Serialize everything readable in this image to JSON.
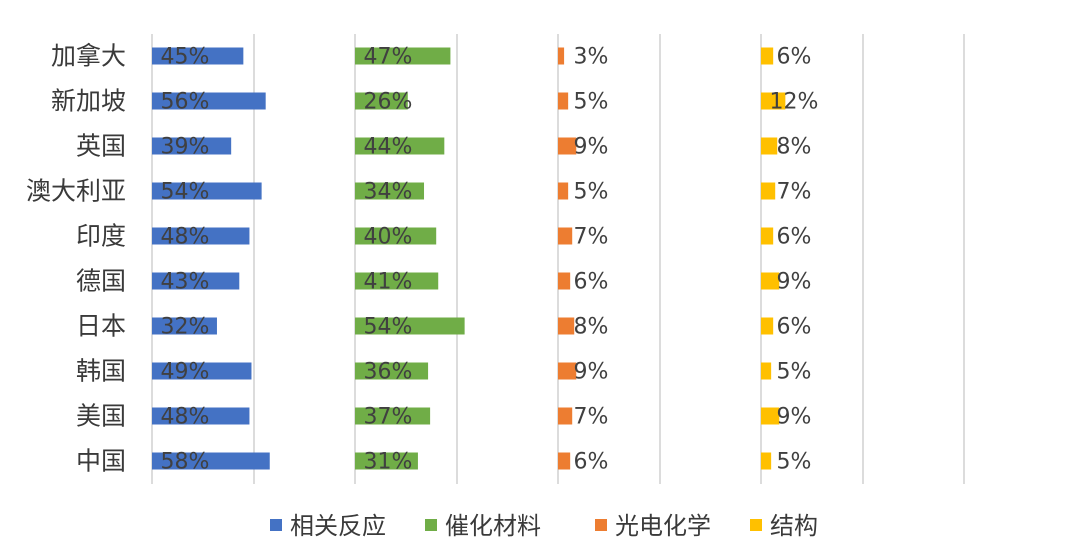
{
  "chart_data": {
    "type": "bar",
    "orientation": "horizontal",
    "layout": "panels",
    "categories": [
      "加拿大",
      "新加坡",
      "英国",
      "澳大利亚",
      "印度",
      "德国",
      "日本",
      "韩国",
      "美国",
      "中国"
    ],
    "series": [
      {
        "name": "相关反应",
        "color": "#4472C4",
        "values": [
          45,
          56,
          39,
          54,
          48,
          43,
          32,
          49,
          48,
          58
        ]
      },
      {
        "name": "催化材料",
        "color": "#70AD47",
        "values": [
          47,
          26,
          44,
          34,
          40,
          41,
          54,
          36,
          37,
          31
        ]
      },
      {
        "name": "光电化学",
        "color": "#ED7D31",
        "values": [
          3,
          5,
          9,
          5,
          7,
          6,
          8,
          9,
          7,
          6
        ]
      },
      {
        "name": "结构",
        "color": "#FFC000",
        "values": [
          6,
          12,
          8,
          7,
          6,
          9,
          6,
          5,
          9,
          5
        ]
      }
    ],
    "value_suffix": "%",
    "grid": true,
    "legend_position": "bottom"
  }
}
